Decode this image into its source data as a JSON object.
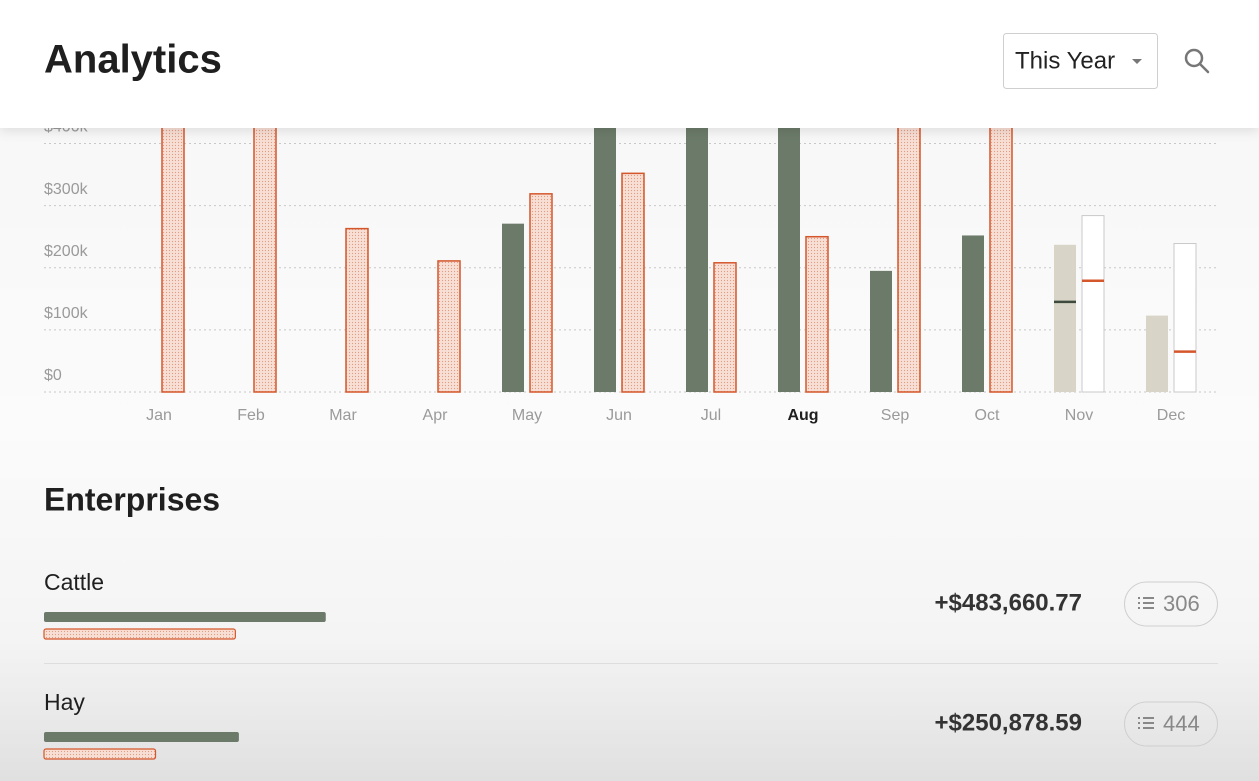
{
  "header": {
    "title": "Analytics",
    "period": "This Year"
  },
  "chart_data": {
    "type": "bar",
    "categories": [
      "Jan",
      "Feb",
      "Mar",
      "Apr",
      "May",
      "Jun",
      "Jul",
      "Aug",
      "Sep",
      "Oct",
      "Nov",
      "Dec"
    ],
    "selected_category": "Aug",
    "series": [
      {
        "color": "#6b7a69",
        "values": [
          null,
          null,
          null,
          null,
          271000,
          450000,
          450000,
          450000,
          195000,
          252000,
          145000,
          null
        ],
        "projected": [
          null,
          null,
          null,
          null,
          null,
          null,
          null,
          null,
          null,
          null,
          237000,
          123000
        ]
      },
      {
        "color": "#d4562b",
        "values": [
          450000,
          450000,
          263000,
          211000,
          319000,
          352000,
          208000,
          250000,
          450000,
          450000,
          179000,
          65000
        ],
        "projected": [
          null,
          null,
          null,
          null,
          null,
          null,
          null,
          null,
          null,
          null,
          284000,
          239000
        ]
      }
    ],
    "ylim": [
      0,
      425000
    ],
    "yticks": [
      {
        "value": 0,
        "label": "$0"
      },
      {
        "value": 100000,
        "label": "$100k"
      },
      {
        "value": 200000,
        "label": "$200k"
      },
      {
        "value": 300000,
        "label": "$300k"
      },
      {
        "value": 400000,
        "label": "$400k"
      }
    ],
    "grid": true
  },
  "enterprises": {
    "title": "Enterprises",
    "bar_max": 100,
    "rows": [
      {
        "name": "Cattle",
        "bars": [
          24,
          16.3
        ],
        "amount": "+$483,660.77",
        "count": 306
      },
      {
        "name": "Hay",
        "bars": [
          16.6,
          9.5
        ],
        "amount": "+$250,878.59",
        "count": 444
      }
    ]
  }
}
